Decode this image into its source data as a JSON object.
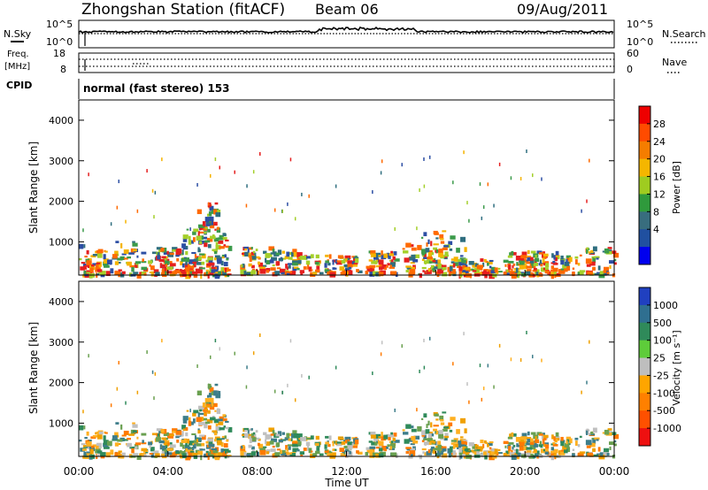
{
  "header": {
    "title": "Zhongshan Station (fitACF)",
    "beam": "Beam 06",
    "date": "09/Aug/2011"
  },
  "noise_panel": {
    "left_label": "N.Sky",
    "left_ticks": [
      "10^5",
      "10^0"
    ],
    "right_label": "N.Search",
    "right_ticks": [
      "10^5",
      "10^0"
    ]
  },
  "freq_panel": {
    "left_label_1": "Freq.",
    "left_label_2": "[MHz]",
    "left_ticks": [
      "18",
      "8"
    ],
    "right_label": "Nave",
    "right_ticks": [
      "60",
      "0"
    ]
  },
  "cpid": {
    "label": "CPID",
    "value": "normal (fast stereo) 153"
  },
  "chart_data": [
    {
      "type": "heatmap",
      "name": "power",
      "ylabel": "Slant Range [km]",
      "y_ticks": [
        "4000",
        "3000",
        "2000",
        "1000"
      ],
      "ylim": [
        180,
        4500
      ],
      "colorbar_label": "Power [dB]",
      "colorbar_ticks": [
        "28",
        "24",
        "20",
        "16",
        "12",
        "8",
        "4"
      ],
      "colorbar_colors": [
        "#ee0000",
        "#ff4b00",
        "#f57d00",
        "#f5b600",
        "#9fcc20",
        "#2f9a3c",
        "#386d7e",
        "#2050a0",
        "#0000ee"
      ]
    },
    {
      "type": "heatmap",
      "name": "velocity",
      "xlabel": "Time UT",
      "ylabel": "Slant Range [km]",
      "x_ticks": [
        "00:00",
        "04:00",
        "08:00",
        "12:00",
        "16:00",
        "20:00",
        "00:00"
      ],
      "xlim": [
        0,
        24
      ],
      "y_ticks": [
        "4000",
        "3000",
        "2000",
        "1000"
      ],
      "ylim": [
        180,
        4500
      ],
      "colorbar_label": "Velocity [m s⁻¹]",
      "colorbar_ticks": [
        "1000",
        "500",
        "100",
        "25",
        "-25",
        "-100",
        "-500",
        "-1000"
      ],
      "colorbar_colors": [
        "#2040c0",
        "#2f6f90",
        "#2f8a5a",
        "#5ecc3a",
        "#bebebe",
        "#ffa500",
        "#ff8000",
        "#ff5000",
        "#ee1010"
      ]
    }
  ],
  "colors": {
    "power_seed": [
      "#e51f1f",
      "#ff6a00",
      "#f5b300",
      "#a4cf2a",
      "#3b9a4a",
      "#2f6e7f",
      "#2d4fa4"
    ],
    "vel_seed": [
      "#ff7a00",
      "#f0a000",
      "#2f8a5a",
      "#3d7d8a",
      "#ffb020",
      "#6aa050",
      "#c0c0c0"
    ]
  }
}
